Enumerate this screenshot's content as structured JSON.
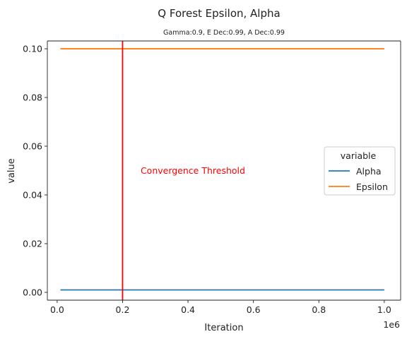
{
  "chart_data": {
    "type": "line",
    "title": "Q Forest Epsilon, Alpha",
    "subtitle": "Gamma:0.9, E Dec:0.99, A Dec:0.99",
    "xlabel": "Iteration",
    "ylabel": "value",
    "x_offset_label": "1e6",
    "xlim": [
      -0.03,
      1.05
    ],
    "ylim": [
      -0.0032,
      0.1032
    ],
    "x_ticks": [
      0.0,
      0.2,
      0.4,
      0.6,
      0.8,
      1.0
    ],
    "x_tick_labels": [
      "0.0",
      "0.2",
      "0.4",
      "0.6",
      "0.8",
      "1.0"
    ],
    "y_ticks": [
      0.0,
      0.02,
      0.04,
      0.06,
      0.08,
      0.1
    ],
    "y_tick_labels": [
      "0.00",
      "0.02",
      "0.04",
      "0.06",
      "0.08",
      "0.10"
    ],
    "grid": false,
    "legend": {
      "title": "variable",
      "placement": "center-right"
    },
    "series": [
      {
        "name": "Alpha",
        "color": "#1f77b4",
        "x": [
          0.01,
          1.0
        ],
        "y": [
          0.001,
          0.001
        ]
      },
      {
        "name": "Epsilon",
        "color": "#ff7f0e",
        "x": [
          0.01,
          1.0
        ],
        "y": [
          0.1,
          0.1
        ]
      }
    ],
    "vline": {
      "x": 0.2,
      "color": "#ff0000"
    },
    "annotation": {
      "text": "Convergence Threshold",
      "x": 0.255,
      "y": 0.05,
      "color": "#ff0000"
    }
  }
}
